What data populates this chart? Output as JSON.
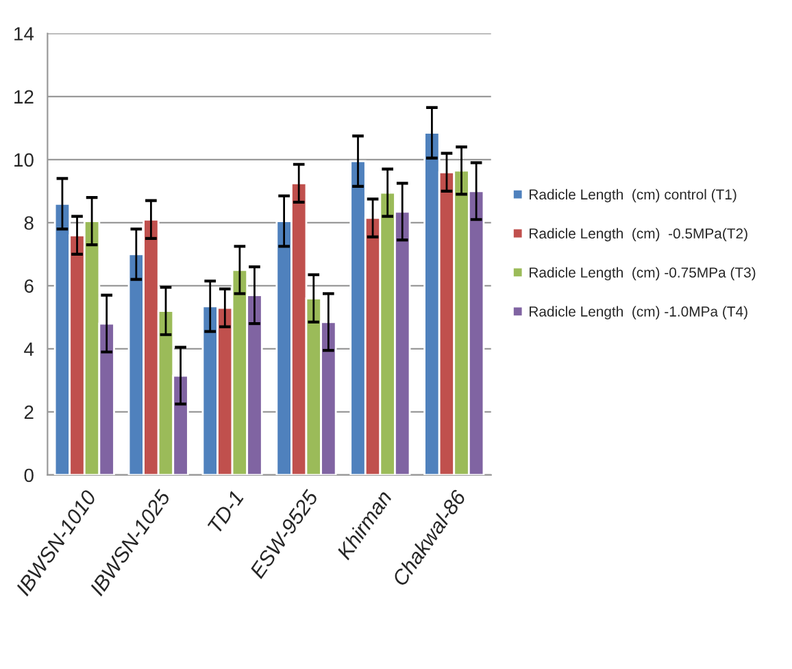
{
  "chart_data": {
    "type": "bar",
    "categories": [
      "IBWSN-1010",
      "IBWSN-1025",
      "TD-1",
      "ESW-9525",
      "Khirman",
      "Chakwal-86"
    ],
    "series": [
      {
        "name": "Radicle Length  (cm) control (T1)",
        "color": "#4f81bd",
        "values": [
          8.6,
          7.0,
          5.35,
          8.05,
          9.95,
          10.85
        ],
        "errors": [
          0.8,
          0.8,
          0.8,
          0.8,
          0.8,
          0.8
        ]
      },
      {
        "name": "Radicle Length  (cm)  -0.5MPa(T2)",
        "color": "#c0504d",
        "values": [
          7.6,
          8.1,
          5.3,
          9.25,
          8.15,
          9.6
        ],
        "errors": [
          0.6,
          0.6,
          0.6,
          0.6,
          0.6,
          0.6
        ]
      },
      {
        "name": "Radicle Length  (cm) -0.75MPa (T3)",
        "color": "#9bbb59",
        "values": [
          8.05,
          5.2,
          6.5,
          5.6,
          8.95,
          9.65
        ],
        "errors": [
          0.75,
          0.75,
          0.75,
          0.75,
          0.75,
          0.75
        ]
      },
      {
        "name": "Radicle Length  (cm) -1.0MPa (T4)",
        "color": "#8064a2",
        "values": [
          4.8,
          3.15,
          5.7,
          4.85,
          8.35,
          9.0
        ],
        "errors": [
          0.9,
          0.9,
          0.9,
          0.9,
          0.9,
          0.9
        ]
      }
    ],
    "ylim": [
      0,
      14
    ],
    "yticks": [
      0,
      2,
      4,
      6,
      8,
      10,
      12,
      14
    ],
    "grid": "y",
    "legend": "right"
  }
}
